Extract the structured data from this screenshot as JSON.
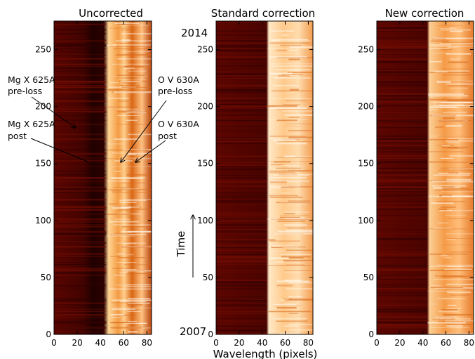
{
  "chart_data": [
    {
      "type": "heatmap",
      "title": "Uncorrected",
      "xlabel": "",
      "ylabel": "",
      "xlim": [
        0,
        84
      ],
      "ylim": [
        0,
        275
      ],
      "xticks": [
        0,
        20,
        40,
        60,
        80
      ],
      "yticks": [
        0,
        50,
        100,
        150,
        200,
        250
      ],
      "colormap": "red-temperature",
      "colors": {
        "dark": "#4a0300",
        "mid": "#c24a09",
        "bright": "#fff4e4"
      },
      "annotations": [
        {
          "text": "Mg X 625A pre-loss",
          "lines": [
            "Mg X 625A",
            "pre-loss"
          ],
          "points_to": {
            "x": 20,
            "y": 178
          }
        },
        {
          "text": "Mg X 625A post",
          "lines": [
            "Mg X 625A",
            "post"
          ],
          "points_to": {
            "x": 28,
            "y": 148
          }
        },
        {
          "text": "O V 630A pre-loss",
          "lines": [
            "O V 630A",
            "pre-loss"
          ],
          "points_to": {
            "x": 56,
            "y": 148
          }
        },
        {
          "text": "O V 630A post",
          "lines": [
            "O V 630A",
            "post"
          ],
          "points_to": {
            "x": 70,
            "y": 148
          }
        }
      ]
    },
    {
      "type": "heatmap",
      "title": "Standard correction",
      "xlabel": "Wavelength (pixels)",
      "ylabel": "Time",
      "xlim": [
        0,
        84
      ],
      "ylim": [
        0,
        275
      ],
      "xticks": [
        0,
        20,
        40,
        60,
        80
      ],
      "yticks": [
        0,
        50,
        100,
        150,
        200,
        250
      ],
      "colormap": "red-temperature",
      "colors": {
        "dark": "#4a0300",
        "mid": "#c24a09",
        "bright": "#fff4e4"
      },
      "time_start": "2007",
      "time_end": "2014"
    },
    {
      "type": "heatmap",
      "title": "New correction",
      "xlabel": "",
      "ylabel": "",
      "xlim": [
        0,
        84
      ],
      "ylim": [
        0,
        275
      ],
      "xticks": [
        0,
        20,
        40,
        60,
        80
      ],
      "yticks": [
        0,
        50,
        100,
        150,
        200,
        250
      ],
      "colormap": "red-temperature",
      "colors": {
        "dark": "#4a0300",
        "mid": "#c24a09",
        "bright": "#fff4e4"
      }
    }
  ]
}
